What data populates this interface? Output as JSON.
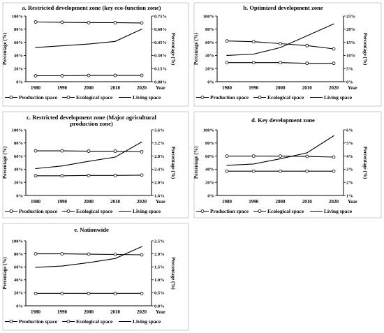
{
  "chart_data": [
    {
      "type": "line",
      "title": "a. Restricted development zone (key eco-function zone)",
      "x": [
        "1980",
        "1990",
        "2000",
        "2010",
        "2020"
      ],
      "xlabel": "Year",
      "ylabel": "Percentage (%)",
      "ylabel_right": "Percentage (%)",
      "ylim": [
        0,
        100
      ],
      "yticks": [
        "0%",
        "20%",
        "40%",
        "60%",
        "80%",
        "100%"
      ],
      "ylim_right": [
        0,
        0.75
      ],
      "yticks_right": [
        "0.00%",
        "0.15%",
        "0.30%",
        "0.45%",
        "0.60%",
        "0.75%"
      ],
      "series": [
        {
          "name": "Production space",
          "axis": "left",
          "values": [
            9,
            9,
            9.5,
            9.5,
            9.5
          ]
        },
        {
          "name": "Ecological space",
          "axis": "left",
          "values": [
            91,
            90.5,
            90,
            90,
            89.5
          ]
        },
        {
          "name": "Living space",
          "axis": "right",
          "values": [
            0.39,
            0.41,
            0.43,
            0.46,
            0.6
          ]
        }
      ]
    },
    {
      "type": "line",
      "title": "b. Optimized development zone",
      "x": [
        "1980",
        "1990",
        "2000",
        "2010",
        "2020"
      ],
      "xlabel": "Year",
      "ylabel": "Percentage (%)",
      "ylabel_right": "Percentage (%)",
      "ylim": [
        0,
        100
      ],
      "yticks": [
        "0%",
        "20%",
        "40%",
        "60%",
        "80%",
        "100%"
      ],
      "ylim_right": [
        0,
        25
      ],
      "yticks_right": [
        "0%",
        "5%",
        "10%",
        "15%",
        "20%",
        "25%"
      ],
      "series": [
        {
          "name": "Production space",
          "axis": "left",
          "values": [
            62,
            61,
            58,
            55,
            50
          ]
        },
        {
          "name": "Ecological space",
          "axis": "left",
          "values": [
            29,
            29,
            29,
            28,
            28
          ]
        },
        {
          "name": "Living space",
          "axis": "right",
          "values": [
            10,
            10.5,
            13,
            17.5,
            22
          ]
        }
      ]
    },
    {
      "type": "line",
      "title": "c. Restricted development zone (Major agricultural production zone)",
      "x": [
        "1980",
        "1990",
        "2000",
        "2010",
        "2020"
      ],
      "xlabel": "Year",
      "ylabel": "Percentage (%)",
      "ylabel_right": "Percentage (%)",
      "ylim": [
        0,
        100
      ],
      "yticks": [
        "0%",
        "20%",
        "40%",
        "60%",
        "80%",
        "100%"
      ],
      "ylim_right": [
        1.6,
        3.6
      ],
      "yticks_right": [
        "1.6%",
        "2.0%",
        "2.4%",
        "2.8%",
        "3.2%",
        "3.6%"
      ],
      "series": [
        {
          "name": "Production space",
          "axis": "left",
          "values": [
            68,
            68,
            67.5,
            67.5,
            66.5
          ]
        },
        {
          "name": "Ecological space",
          "axis": "left",
          "values": [
            30,
            30,
            30.5,
            30.5,
            31
          ]
        },
        {
          "name": "Living space",
          "axis": "right",
          "values": [
            2.42,
            2.5,
            2.64,
            2.77,
            3.23
          ]
        }
      ]
    },
    {
      "type": "line",
      "title": "d. Key development zone",
      "x": [
        "1980",
        "1990",
        "2000",
        "2010",
        "2020"
      ],
      "xlabel": "Year",
      "ylabel": "Percentage (%)",
      "ylabel_right": "Percentage (%)",
      "ylim": [
        0,
        100
      ],
      "yticks": [
        "0%",
        "20%",
        "40%",
        "60%",
        "80%",
        "100%"
      ],
      "ylim_right": [
        1,
        6
      ],
      "yticks_right": [
        "1%",
        "2%",
        "3%",
        "4%",
        "5%",
        "6%"
      ],
      "series": [
        {
          "name": "Production space",
          "axis": "left",
          "values": [
            60,
            60,
            60,
            59.5,
            58.5
          ]
        },
        {
          "name": "Ecological space",
          "axis": "left",
          "values": [
            37,
            37,
            37,
            37,
            37
          ]
        },
        {
          "name": "Living space",
          "axis": "right",
          "values": [
            3.3,
            3.4,
            3.8,
            4.25,
            5.55
          ]
        }
      ]
    },
    {
      "type": "line",
      "title": "e. Nationwide",
      "x": [
        "1980",
        "1990",
        "2000",
        "2010",
        "2020"
      ],
      "xlabel": "Year",
      "ylabel": "Percentage (%)",
      "ylabel_right": "Percentage (%)",
      "ylim": [
        0,
        100
      ],
      "yticks": [
        "0%",
        "20%",
        "40%",
        "60%",
        "80%",
        "100%"
      ],
      "ylim_right": [
        0,
        2.5
      ],
      "yticks_right": [
        "0.0%",
        "0.5%",
        "1.0%",
        "1.5%",
        "2.0%",
        "2.5%"
      ],
      "series": [
        {
          "name": "Production space",
          "axis": "left",
          "values": [
            19,
            19,
            19,
            19,
            19
          ]
        },
        {
          "name": "Ecological space",
          "axis": "left",
          "values": [
            80,
            80,
            79.5,
            79,
            78.5
          ]
        },
        {
          "name": "Living space",
          "axis": "right",
          "values": [
            1.48,
            1.53,
            1.66,
            1.82,
            2.28
          ]
        }
      ]
    }
  ]
}
